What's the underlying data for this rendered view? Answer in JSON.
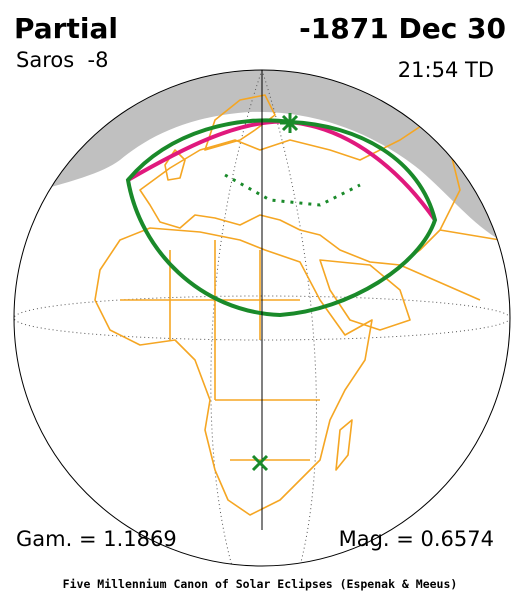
{
  "header": {
    "eclipse_type": "Partial",
    "date": "-1871 Dec 30",
    "saros": "Saros  -8",
    "time": "21:54 TD"
  },
  "footer": {
    "gamma": "Gam. = 1.1869",
    "magnitude": "Mag. = 0.6574",
    "credit": "Five Millennium Canon of Solar Eclipses (Espenak & Meeus)"
  }
}
